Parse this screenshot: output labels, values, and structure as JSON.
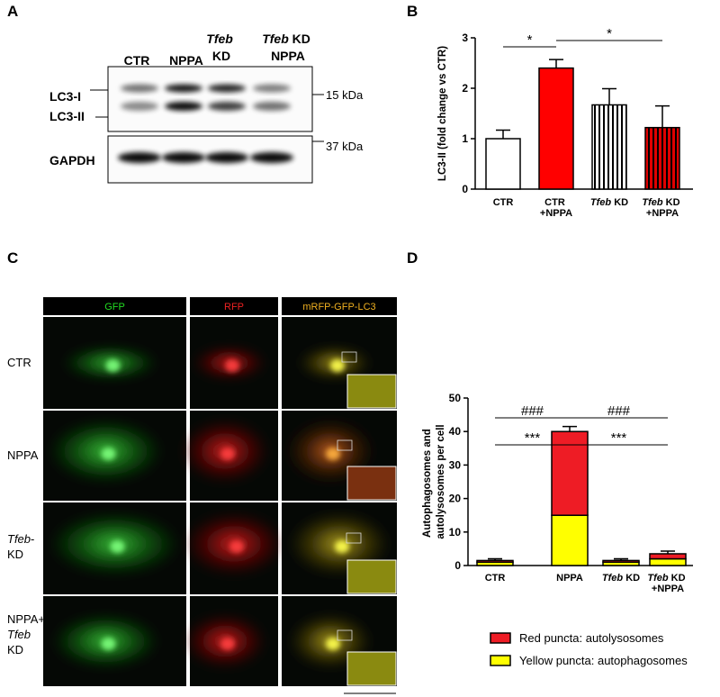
{
  "panel_labels": [
    "A",
    "B",
    "C",
    "D"
  ],
  "blot": {
    "lanes": [
      "CTR",
      "NPPA",
      "Tfeb\nKD",
      "Tfeb KD\nNPPA"
    ],
    "bands": [
      "LC3-I",
      "LC3-II",
      "GAPDH"
    ],
    "markers": [
      "15 kDa",
      "37 kDa"
    ]
  },
  "microscopy": {
    "columns": [
      "GFP",
      "RFP",
      "mRFP-GFP-LC3"
    ],
    "rows": [
      "CTR",
      "NPPA",
      "Tfeb-\nKD",
      "NPPA+\nTfeb\nKD"
    ]
  },
  "chart_data": [
    {
      "type": "bar",
      "ylabel": "LC3-II (fold change vs CTR)",
      "categories": [
        "CTR",
        "CTR\n+NPPA",
        "Tfeb KD",
        "Tfeb KD\n+NPPA"
      ],
      "values": [
        1.0,
        2.4,
        1.67,
        1.22
      ],
      "errors": [
        0.17,
        0.17,
        0.32,
        0.43
      ],
      "colors": [
        "#ffffff",
        "#ff0000",
        "#ffffff",
        "#e00000"
      ],
      "hatched": [
        false,
        false,
        true,
        true
      ],
      "ylim": [
        0,
        3
      ],
      "yticks": [
        0,
        1,
        2,
        3
      ],
      "annotations": [
        {
          "text": "*",
          "from": 0,
          "to": 1
        },
        {
          "text": "*",
          "from": 1,
          "to": 3
        }
      ]
    },
    {
      "type": "stacked_bar",
      "ylabel": "Autophagosomes and\nautolysosomes per cell",
      "categories": [
        "CTR",
        "NPPA",
        "Tfeb KD",
        "Tfeb KD\n+NPPA"
      ],
      "series": [
        {
          "name": "Yellow puncta: autophagosomes",
          "color": "#ffff00",
          "values": [
            1,
            15,
            1,
            2
          ],
          "errors": [
            0.5,
            1.5,
            0.5,
            0.5
          ]
        },
        {
          "name": "Red puncta: autolysosomes",
          "color": "#ee1c25",
          "values": [
            0.5,
            25,
            0.5,
            1.5
          ],
          "errors": [
            0.5,
            1.5,
            0.5,
            0.8
          ]
        }
      ],
      "ylim": [
        0,
        50
      ],
      "yticks": [
        0,
        10,
        20,
        30,
        40,
        50
      ],
      "annotations": [
        {
          "text": "###",
          "from": 0,
          "to": 1
        },
        {
          "text": "###",
          "from": 1,
          "to": 3
        },
        {
          "text": "***",
          "from": 0,
          "to": 1
        },
        {
          "text": "***",
          "from": 1,
          "to": 3
        }
      ]
    }
  ]
}
